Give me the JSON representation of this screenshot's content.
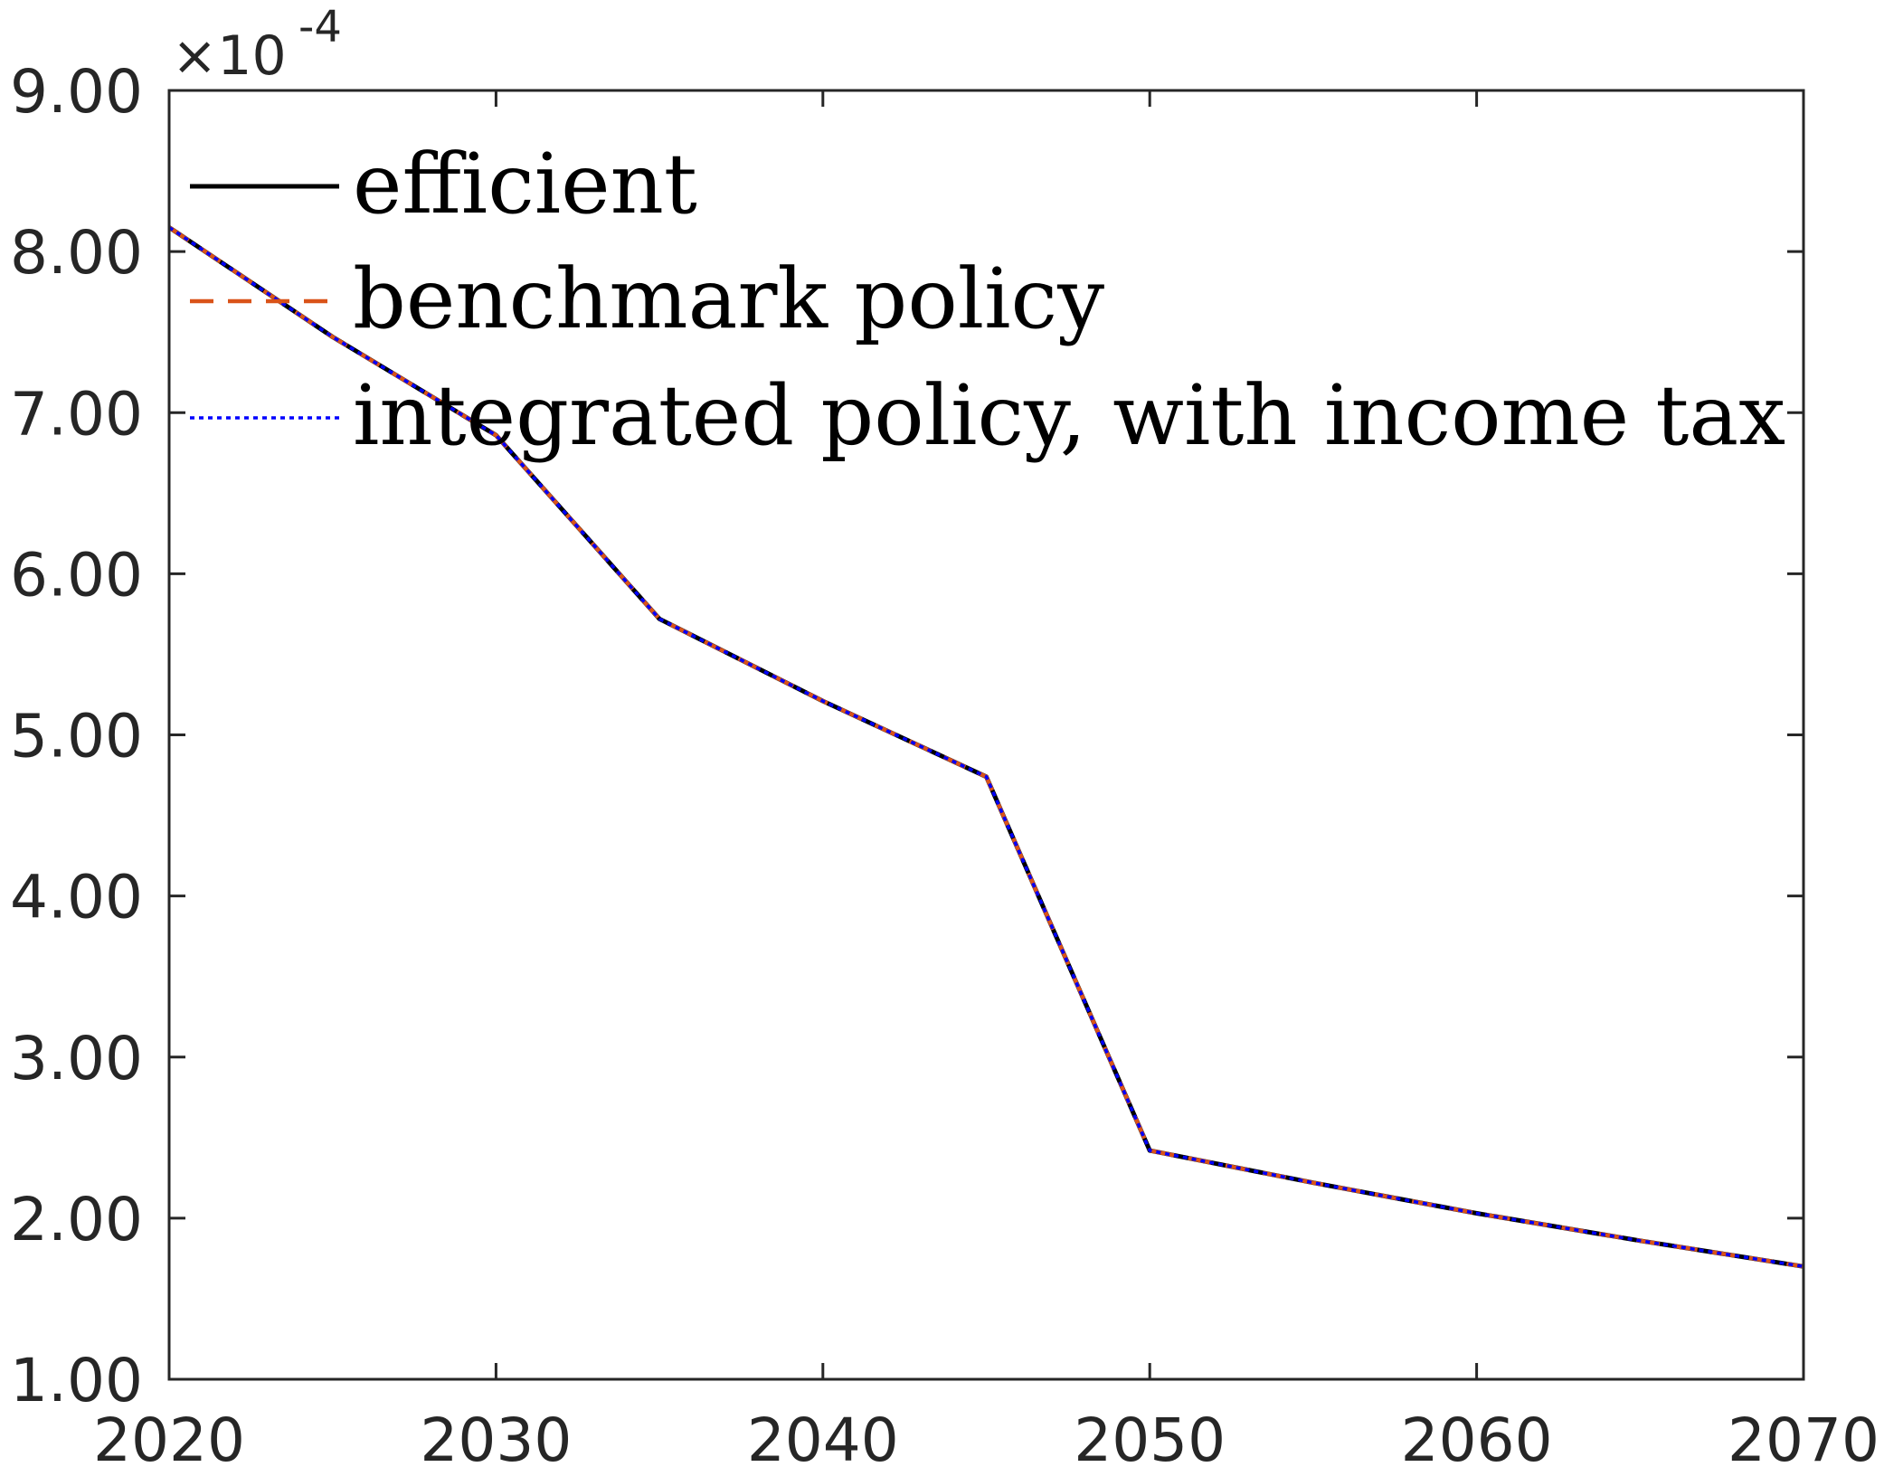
{
  "chart_data": {
    "type": "line",
    "title": "",
    "xlabel": "",
    "ylabel": "",
    "xlim": [
      2020,
      2070
    ],
    "ylim": [
      1.0,
      9.0
    ],
    "y_multiplier": "×10",
    "y_exponent": "-4",
    "x_ticks": [
      2020,
      2030,
      2040,
      2050,
      2060,
      2070
    ],
    "x_tick_labels": [
      "2020",
      "2030",
      "2040",
      "2050",
      "2060",
      "2070"
    ],
    "y_ticks": [
      1,
      2,
      3,
      4,
      5,
      6,
      7,
      8,
      9
    ],
    "y_tick_labels": [
      "1.00",
      "2.00",
      "3.00",
      "4.00",
      "5.00",
      "6.00",
      "7.00",
      "8.00",
      "9.00"
    ],
    "grid": false,
    "legend_position": "top-left",
    "x": [
      2020,
      2025,
      2030,
      2035,
      2040,
      2045,
      2050,
      2055,
      2060,
      2065,
      2070
    ],
    "series": [
      {
        "name": "efficient",
        "color": "#000000",
        "style": "solid",
        "values": [
          8.15,
          7.47,
          6.86,
          5.72,
          5.21,
          4.74,
          2.42,
          2.22,
          2.03,
          1.86,
          1.7
        ]
      },
      {
        "name": "benchmark policy",
        "color": "#D95319",
        "style": "dashed",
        "values": [
          8.15,
          7.47,
          6.86,
          5.72,
          5.21,
          4.74,
          2.42,
          2.22,
          2.03,
          1.86,
          1.7
        ]
      },
      {
        "name": "integrated policy, with income tax",
        "color": "#0000FF",
        "style": "dotted",
        "values": [
          8.15,
          7.47,
          6.86,
          5.72,
          5.21,
          4.74,
          2.42,
          2.22,
          2.03,
          1.86,
          1.7
        ]
      }
    ]
  }
}
